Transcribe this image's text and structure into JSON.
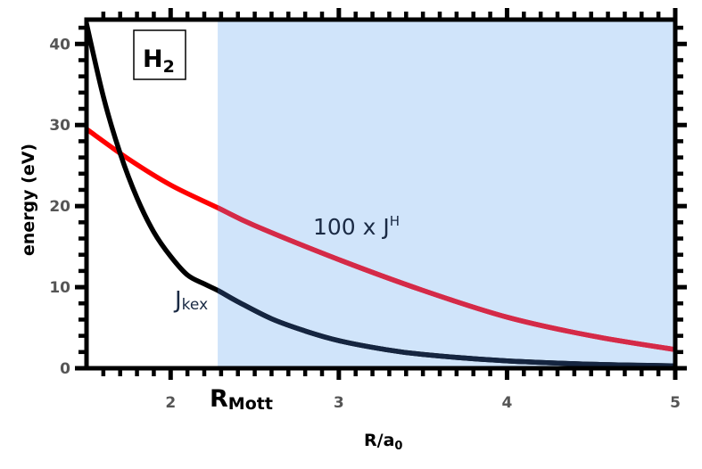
{
  "chart_data": {
    "type": "line",
    "xlabel": "R/a",
    "xlabel_sub": "0",
    "ylabel": "energy (eV)",
    "xlim": [
      1.5,
      5.0
    ],
    "ylim": [
      0,
      43
    ],
    "x_ticks": [
      2,
      3,
      4,
      5
    ],
    "y_ticks": [
      0,
      10,
      20,
      30,
      40
    ],
    "x_tick_labels": [
      "2",
      "3",
      "4",
      "5"
    ],
    "y_tick_labels": [
      "0",
      "10",
      "20",
      "30",
      "40"
    ],
    "grid": false,
    "region": {
      "start_x": 2.28,
      "end_x": 5.0,
      "color": "#d0e4fa",
      "marker_label": "R",
      "marker_label_sub": "Mott"
    },
    "legend_box": {
      "label": "H",
      "label_sub": "2"
    },
    "series": [
      {
        "color": "#000000",
        "color_in_region": "#152540",
        "label": "J",
        "label_sub": "kex",
        "x": [
          1.5,
          1.6,
          1.7,
          1.8,
          1.9,
          2.0,
          2.1,
          2.2,
          2.28,
          2.4,
          2.6,
          2.8,
          3.0,
          3.25,
          3.5,
          4.0,
          4.5,
          5.0
        ],
        "y": [
          42.5,
          33.5,
          26.5,
          21.0,
          16.8,
          13.8,
          11.5,
          10.4,
          9.6,
          8.2,
          6.1,
          4.6,
          3.4,
          2.4,
          1.7,
          0.9,
          0.5,
          0.3
        ]
      },
      {
        "color": "#ff0000",
        "color_in_region": "#d42a48",
        "label": "100 x J",
        "label_sup": "H",
        "x": [
          1.5,
          1.75,
          2.0,
          2.28,
          2.5,
          3.0,
          3.5,
          4.0,
          4.5,
          5.0
        ],
        "y": [
          29.5,
          25.8,
          22.6,
          19.8,
          17.6,
          13.4,
          9.6,
          6.3,
          4.0,
          2.3
        ]
      }
    ]
  }
}
